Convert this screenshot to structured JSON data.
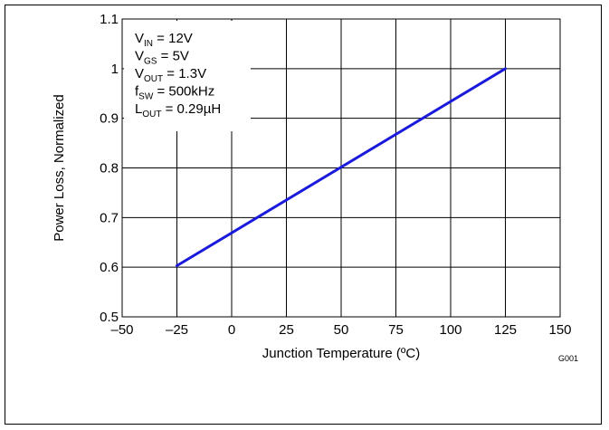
{
  "chart_data": {
    "type": "line",
    "title": "",
    "xlabel": "Junction Temperature (ºC)",
    "ylabel": "Power Loss, Normalized",
    "xlim": [
      -50,
      150
    ],
    "ylim": [
      0.5,
      1.1
    ],
    "x_ticks": [
      -50,
      -25,
      0,
      25,
      50,
      75,
      100,
      125,
      150
    ],
    "x_tick_labels": [
      "–50",
      "–25",
      "0",
      "25",
      "50",
      "75",
      "100",
      "125",
      "150"
    ],
    "y_ticks": [
      0.5,
      0.6,
      0.7,
      0.8,
      0.9,
      1.0,
      1.1
    ],
    "y_tick_labels": [
      "0.5",
      "0.6",
      "0.7",
      "0.8",
      "0.9",
      "1",
      "1.1"
    ],
    "grid": true,
    "series": [
      {
        "color": "#1a1adc",
        "x": [
          -25,
          125
        ],
        "y": [
          0.603,
          1.0
        ]
      }
    ],
    "annotations": [
      {
        "main": "V",
        "sub": "IN",
        "rest": " = 12V"
      },
      {
        "main": "V",
        "sub": "GS",
        "rest": " = 5V"
      },
      {
        "main": "V",
        "sub": "OUT",
        "rest": " = 1.3V"
      },
      {
        "main": "f",
        "sub": "SW",
        "rest": " = 500kHz"
      },
      {
        "main": "L",
        "sub": "OUT",
        "rest": " = 0.29µH"
      }
    ],
    "figure_code": "G001"
  }
}
